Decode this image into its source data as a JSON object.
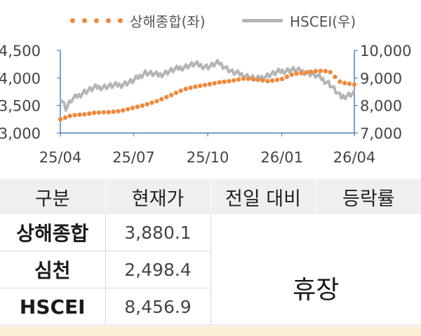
{
  "chart_data": {
    "type": "line",
    "x_ticks": [
      "25/04",
      "25/07",
      "25/10",
      "26/01",
      "26/04"
    ],
    "y_left": {
      "ticks": [
        "3,000",
        "3,500",
        "4,000",
        "4,500"
      ],
      "range": [
        3000,
        4500
      ]
    },
    "y_right": {
      "ticks": [
        "7,000",
        "8,000",
        "9,000",
        "10,000"
      ],
      "range": [
        7000,
        10000
      ]
    },
    "legend": {
      "left_series": "상해종합(좌)",
      "right_series": "HSCEI(우)"
    },
    "series": [
      {
        "name": "상해종합(좌)",
        "axis": "left",
        "style": "dotted",
        "color": "#EE8A3C",
        "x": [
          "25/04/01",
          "25/04/15",
          "25/05/01",
          "25/05/15",
          "25/06/01",
          "25/06/15",
          "25/07/01",
          "25/07/15",
          "25/08/01",
          "25/08/15",
          "25/09/01",
          "25/09/15",
          "25/10/01",
          "25/10/15",
          "25/11/01",
          "25/11/15",
          "25/12/01",
          "25/12/15",
          "26/01/01",
          "26/01/15",
          "26/02/01",
          "26/02/15",
          "26/03/01",
          "26/03/15",
          "26/04/01"
        ],
        "values": [
          3250,
          3320,
          3340,
          3370,
          3380,
          3400,
          3460,
          3510,
          3590,
          3680,
          3790,
          3840,
          3880,
          3920,
          3950,
          3990,
          3970,
          3940,
          3980,
          4070,
          4100,
          4130,
          4120,
          3920,
          3880
        ]
      },
      {
        "name": "HSCEI(우)",
        "axis": "right",
        "style": "line",
        "color": "#B5B5B5",
        "x": [
          "25/04/01",
          "25/04/08",
          "25/04/15",
          "25/05/01",
          "25/05/15",
          "25/06/01",
          "25/06/15",
          "25/07/01",
          "25/07/15",
          "25/08/01",
          "25/08/15",
          "25/09/01",
          "25/09/15",
          "25/10/01",
          "25/10/15",
          "25/11/01",
          "25/11/15",
          "25/12/01",
          "25/12/15",
          "26/01/01",
          "26/01/15",
          "26/02/01",
          "26/02/15",
          "26/03/01",
          "26/03/15",
          "26/04/01"
        ],
        "values": [
          8300,
          7900,
          8200,
          8500,
          8650,
          8700,
          8750,
          8900,
          9200,
          9100,
          9250,
          9400,
          9500,
          9400,
          9550,
          9200,
          9100,
          8950,
          9100,
          9250,
          9300,
          9200,
          9050,
          8800,
          8300,
          8456.9
        ]
      }
    ]
  },
  "table": {
    "headers": [
      "구분",
      "현재가",
      "전일 대비",
      "등락률"
    ],
    "rows": [
      {
        "name": "상해종합",
        "price": "3,880.1"
      },
      {
        "name": "심천",
        "price": "2,498.4"
      },
      {
        "name": "HSCEI",
        "price": "8,456.9"
      }
    ],
    "status": "휴장"
  }
}
